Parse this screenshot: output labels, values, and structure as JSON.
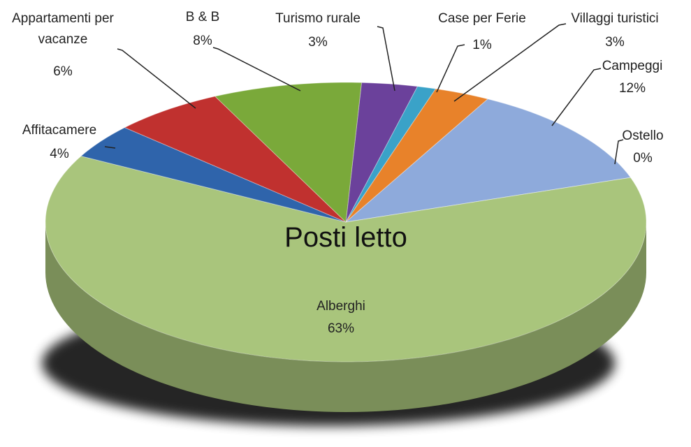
{
  "chart_data": {
    "type": "pie",
    "title": "Posti letto",
    "categories": [
      "Turismo rurale",
      "Case per Ferie",
      "Villaggi turistici",
      "Campeggi",
      "Ostello",
      "Alberghi",
      "Affitacamere",
      "Appartamenti per vacanze",
      "B & B"
    ],
    "values": [
      3,
      1,
      3,
      12,
      0,
      63,
      4,
      6,
      8
    ],
    "value_labels": [
      "3%",
      "1%",
      "3%",
      "12%",
      "0%",
      "63%",
      "4%",
      "6%",
      "8%"
    ],
    "colors": [
      "#6b419b",
      "#3aa2c8",
      "#e8822a",
      "#8eaadb",
      "#c0c0c0",
      "#a9c57c",
      "#2f64ab",
      "#c0312f",
      "#7aa93a"
    ]
  }
}
